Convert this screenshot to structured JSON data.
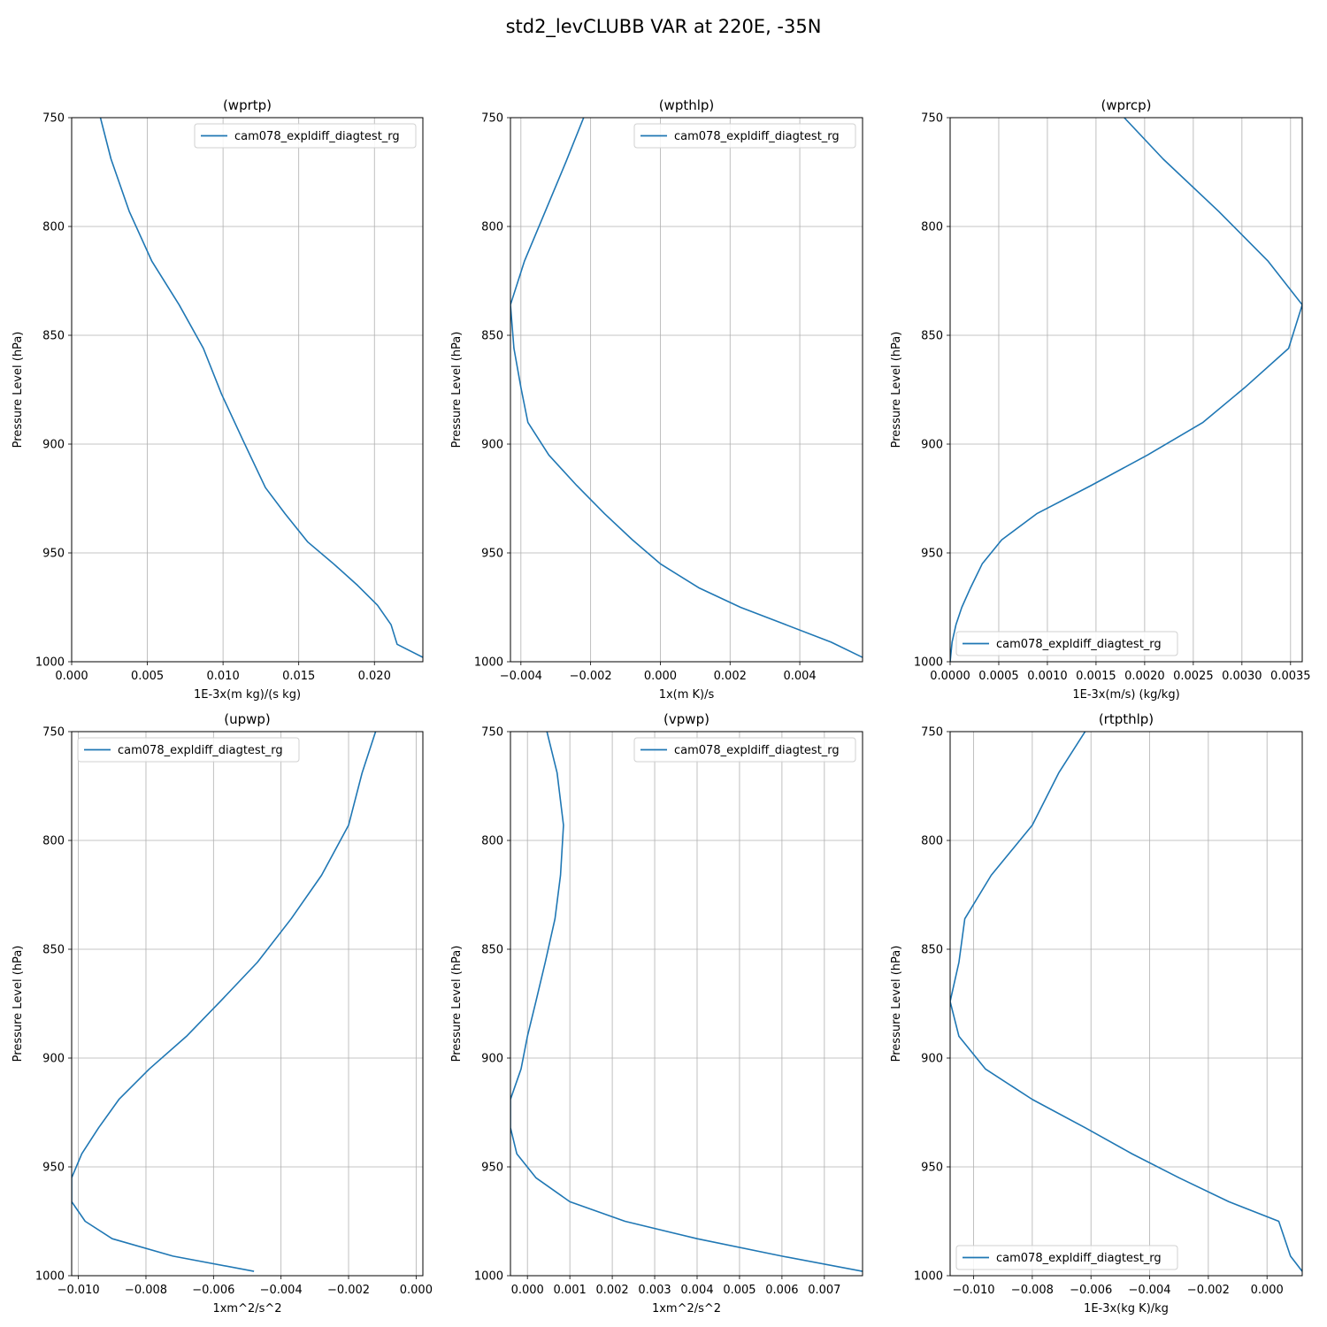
{
  "figure": {
    "title": "std2_levCLUBB VAR at 220E, -35N",
    "line_color": "#1f77b4"
  },
  "chart_data": [
    {
      "type": "line",
      "title": "(wprtp)",
      "xlabel": "1E-3x(m kg)/(s kg)",
      "ylabel": "Pressure Level (hPa)",
      "xlim": [
        0,
        0.0232
      ],
      "ylim": [
        750,
        1000
      ],
      "y_inverted": true,
      "grid": true,
      "xticks": [
        0,
        0.005,
        0.01,
        0.015,
        0.02
      ],
      "xtick_labels": [
        "0.000",
        "0.005",
        "0.010",
        "0.015",
        "0.020"
      ],
      "yticks": [
        750,
        800,
        850,
        900,
        950,
        1000
      ],
      "ytick_labels": [
        "750",
        "800",
        "850",
        "900",
        "950",
        "1000"
      ],
      "legend": {
        "position": "upper right"
      },
      "series": [
        {
          "name": "cam078_expldiff_diagtest_rg",
          "x": [
            0.0019,
            0.0026,
            0.0038,
            0.0053,
            0.0071,
            0.0087,
            0.0099,
            0.0113,
            0.0128,
            0.0141,
            0.0156,
            0.0173,
            0.0189,
            0.0202,
            0.0211,
            0.0215,
            0.0232
          ],
          "y": [
            750,
            769,
            793,
            816,
            836,
            856,
            877,
            898,
            920,
            932,
            945,
            955,
            965,
            974,
            983,
            992,
            998
          ]
        }
      ]
    },
    {
      "type": "line",
      "title": "(wpthlp)",
      "xlabel": "1x(m K)/s",
      "ylabel": "Pressure Level (hPa)",
      "xlim": [
        -0.0043,
        0.0058
      ],
      "ylim": [
        750,
        1000
      ],
      "y_inverted": true,
      "grid": true,
      "xticks": [
        -0.004,
        -0.002,
        0.0,
        0.002,
        0.004
      ],
      "xtick_labels": [
        "−0.004",
        "−0.002",
        "0.000",
        "0.002",
        "0.004"
      ],
      "yticks": [
        750,
        800,
        850,
        900,
        950,
        1000
      ],
      "ytick_labels": [
        "750",
        "800",
        "850",
        "900",
        "950",
        "1000"
      ],
      "legend": {
        "position": "upper right"
      },
      "series": [
        {
          "name": "cam078_expldiff_diagtest_rg",
          "x": [
            -0.0022,
            -0.0027,
            -0.0033,
            -0.0039,
            -0.0043,
            -0.0042,
            -0.004,
            -0.0038,
            -0.0032,
            -0.0024,
            -0.0016,
            -0.0008,
            0.0,
            0.0011,
            0.0023,
            0.0036,
            0.0049,
            0.0058
          ],
          "y": [
            750,
            770,
            793,
            816,
            836,
            856,
            874,
            890,
            905,
            919,
            932,
            944,
            955,
            966,
            975,
            983,
            991,
            998
          ]
        }
      ]
    },
    {
      "type": "line",
      "title": "(wprcp)",
      "xlabel": "1E-3x(m/s) (kg/kg)",
      "ylabel": "Pressure Level (hPa)",
      "xlim": [
        0,
        0.00362
      ],
      "ylim": [
        750,
        1000
      ],
      "y_inverted": true,
      "grid": true,
      "xticks": [
        0,
        0.0005,
        0.001,
        0.0015,
        0.002,
        0.0025,
        0.003,
        0.0035
      ],
      "xtick_labels": [
        "0.0000",
        "0.0005",
        "0.0010",
        "0.0015",
        "0.0020",
        "0.0025",
        "0.0030",
        "0.0035"
      ],
      "yticks": [
        750,
        800,
        850,
        900,
        950,
        1000
      ],
      "ytick_labels": [
        "750",
        "800",
        "850",
        "900",
        "950",
        "1000"
      ],
      "legend": {
        "position": "lower left"
      },
      "series": [
        {
          "name": "cam078_expldiff_diagtest_rg",
          "x": [
            0.00179,
            0.00219,
            0.00276,
            0.00327,
            0.00362,
            0.00348,
            0.00303,
            0.0026,
            0.00203,
            0.00145,
            0.00089,
            0.00053,
            0.00033,
            0.00021,
            0.00012,
            6e-05,
            2e-05,
            0.0
          ],
          "y": [
            750,
            769,
            793,
            816,
            836,
            856,
            874,
            890,
            905,
            919,
            932,
            944,
            955,
            966,
            975,
            983,
            991,
            1000
          ]
        }
      ]
    },
    {
      "type": "line",
      "title": "(upwp)",
      "xlabel": "1xm^2/s^2",
      "ylabel": "Pressure Level (hPa)",
      "xlim": [
        -0.0102,
        0.0002
      ],
      "ylim": [
        750,
        1000
      ],
      "y_inverted": true,
      "grid": true,
      "xticks": [
        -0.01,
        -0.008,
        -0.006,
        -0.004,
        -0.002,
        0.0
      ],
      "xtick_labels": [
        "−0.010",
        "−0.008",
        "−0.006",
        "−0.004",
        "−0.002",
        "0.000"
      ],
      "yticks": [
        750,
        800,
        850,
        900,
        950,
        1000
      ],
      "ytick_labels": [
        "750",
        "800",
        "850",
        "900",
        "950",
        "1000"
      ],
      "legend": {
        "position": "upper left"
      },
      "series": [
        {
          "name": "cam078_expldiff_diagtest_rg",
          "x": [
            -0.0012,
            -0.0016,
            -0.002,
            -0.0028,
            -0.0037,
            -0.0047,
            -0.0058,
            -0.0068,
            -0.0079,
            -0.0088,
            -0.0094,
            -0.0099,
            -0.0102,
            -0.0102,
            -0.0098,
            -0.009,
            -0.0072,
            -0.0048
          ],
          "y": [
            750,
            769,
            793,
            816,
            836,
            856,
            874,
            890,
            905,
            919,
            932,
            944,
            955,
            966,
            975,
            983,
            991,
            998
          ]
        }
      ]
    },
    {
      "type": "line",
      "title": "(vpwp)",
      "xlabel": "1xm^2/s^2",
      "ylabel": "Pressure Level (hPa)",
      "xlim": [
        -0.0004,
        0.0079
      ],
      "ylim": [
        750,
        1000
      ],
      "y_inverted": true,
      "grid": true,
      "xticks": [
        0.0,
        0.001,
        0.002,
        0.003,
        0.004,
        0.005,
        0.006,
        0.007
      ],
      "xtick_labels": [
        "0.000",
        "0.001",
        "0.002",
        "0.003",
        "0.004",
        "0.005",
        "0.006",
        "0.007"
      ],
      "yticks": [
        750,
        800,
        850,
        900,
        950,
        1000
      ],
      "ytick_labels": [
        "750",
        "800",
        "850",
        "900",
        "950",
        "1000"
      ],
      "legend": {
        "position": "upper right"
      },
      "series": [
        {
          "name": "cam078_expldiff_diagtest_rg",
          "x": [
            0.00046,
            0.0007,
            0.00085,
            0.00078,
            0.00065,
            0.00042,
            0.0002,
            0.0,
            -0.00015,
            -0.0004,
            -0.0004,
            -0.00025,
            0.0002,
            0.001,
            0.0023,
            0.004,
            0.006,
            0.0079
          ],
          "y": [
            750,
            769,
            793,
            816,
            836,
            856,
            874,
            890,
            905,
            919,
            932,
            944,
            955,
            966,
            975,
            983,
            991,
            998
          ]
        }
      ]
    },
    {
      "type": "line",
      "title": "(rtpthlp)",
      "xlabel": "1E-3x(kg K)/kg",
      "ylabel": "Pressure Level (hPa)",
      "xlim": [
        -0.0108,
        0.0012
      ],
      "ylim": [
        750,
        1000
      ],
      "y_inverted": true,
      "grid": true,
      "xticks": [
        -0.01,
        -0.008,
        -0.006,
        -0.004,
        -0.002,
        0.0
      ],
      "xtick_labels": [
        "−0.010",
        "−0.008",
        "−0.006",
        "−0.004",
        "−0.002",
        "0.000"
      ],
      "yticks": [
        750,
        800,
        850,
        900,
        950,
        1000
      ],
      "ytick_labels": [
        "750",
        "800",
        "850",
        "900",
        "950",
        "1000"
      ],
      "legend": {
        "position": "lower left"
      },
      "series": [
        {
          "name": "cam078_expldiff_diagtest_rg",
          "x": [
            -0.0062,
            -0.0071,
            -0.008,
            -0.0094,
            -0.0103,
            -0.0105,
            -0.0108,
            -0.0105,
            -0.0096,
            -0.008,
            -0.0062,
            -0.0046,
            -0.003,
            -0.0013,
            0.0004,
            0.0008,
            0.0012
          ],
          "y": [
            750,
            769,
            793,
            816,
            836,
            856,
            874,
            890,
            905,
            919,
            932,
            944,
            955,
            966,
            975,
            991,
            998
          ]
        }
      ]
    }
  ]
}
